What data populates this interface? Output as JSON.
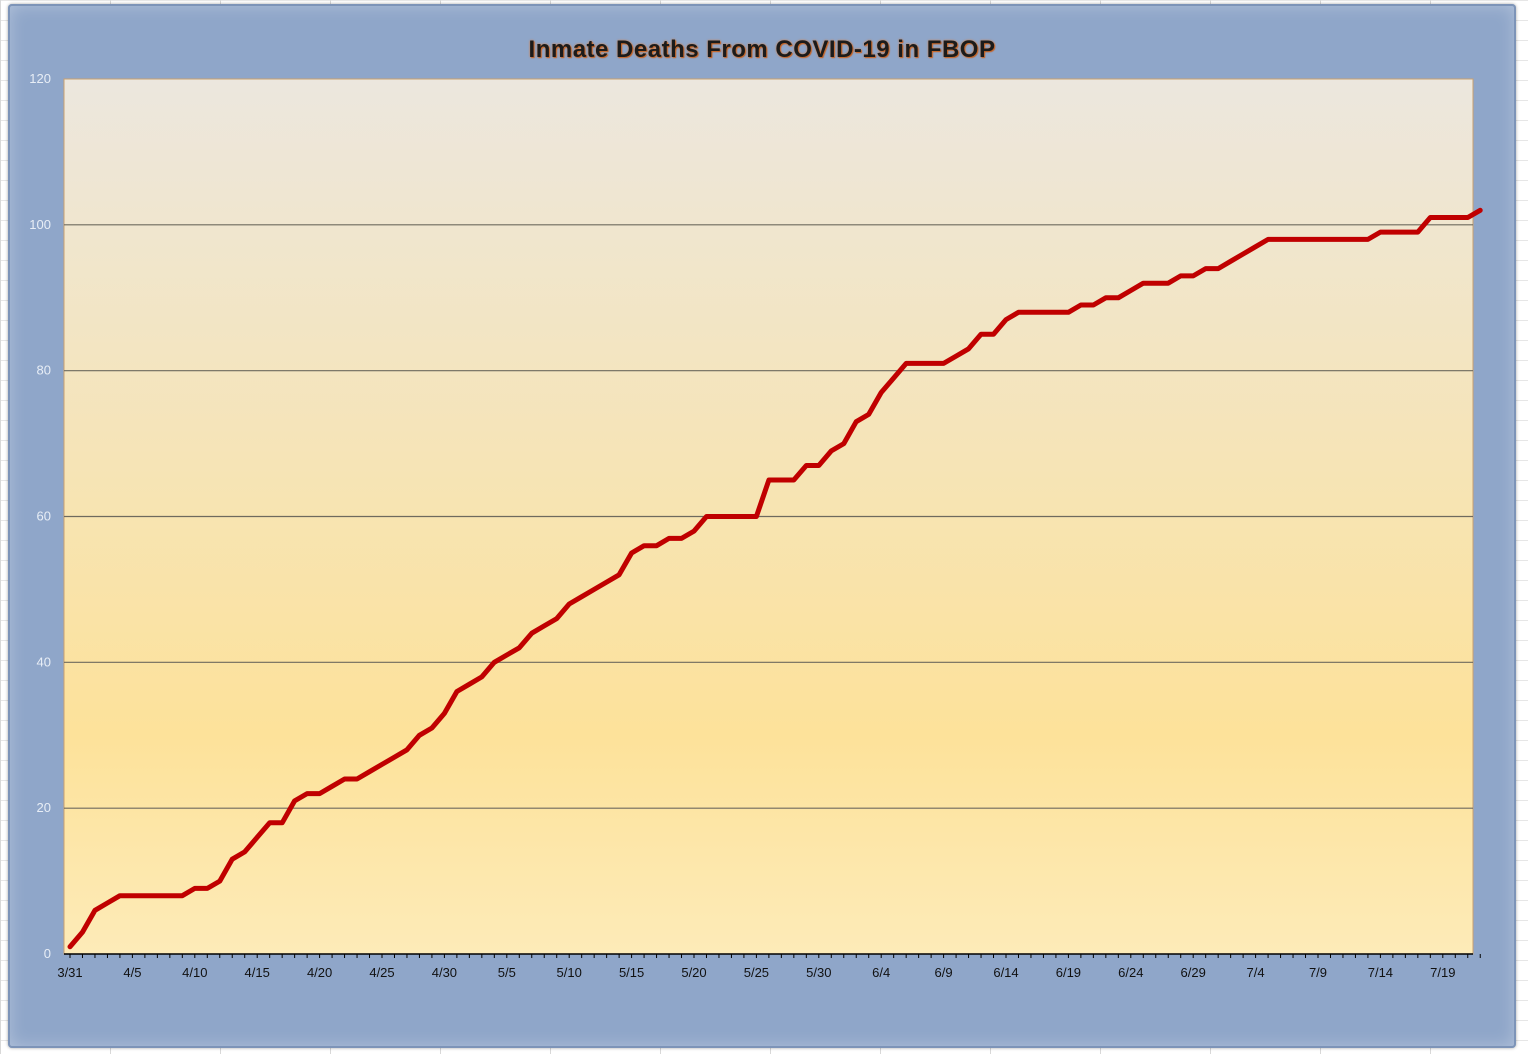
{
  "chart_data": {
    "type": "line",
    "title": "Inmate Deaths From COVID-19 in FBOP",
    "xlabel": "",
    "ylabel": "",
    "ylim": [
      0,
      120
    ],
    "yticks": [
      0,
      20,
      40,
      60,
      80,
      100,
      120
    ],
    "x_tick_labels": [
      "3/31",
      "4/5",
      "4/10",
      "4/15",
      "4/20",
      "4/25",
      "4/30",
      "5/5",
      "5/10",
      "5/15",
      "5/20",
      "5/25",
      "5/30",
      "6/4",
      "6/9",
      "6/14",
      "6/19",
      "6/24",
      "6/29",
      "7/4",
      "7/9",
      "7/14",
      "7/19"
    ],
    "grid": true,
    "legend": "none",
    "line_color": "#c00000",
    "plot_background": [
      "#ece7de",
      "#fde29a",
      "#fdebb8"
    ],
    "frame_color": "#8fa6c9",
    "x_start_date": "3/31",
    "series": [
      {
        "values": [
          1,
          3,
          6,
          7,
          8,
          8,
          8,
          8,
          8,
          8,
          9,
          9,
          10,
          13,
          14,
          16,
          18,
          18,
          21,
          22,
          22,
          23,
          24,
          24,
          25,
          26,
          27,
          28,
          30,
          31,
          33,
          36,
          37,
          38,
          40,
          41,
          42,
          44,
          45,
          46,
          48,
          49,
          50,
          51,
          52,
          55,
          56,
          56,
          57,
          57,
          58,
          60,
          60,
          60,
          60,
          60,
          65,
          65,
          65,
          67,
          67,
          69,
          70,
          73,
          74,
          77,
          79,
          81,
          81,
          81,
          81,
          82,
          83,
          85,
          85,
          87,
          88,
          88,
          88,
          88,
          88,
          89,
          89,
          90,
          90,
          91,
          92,
          92,
          92,
          93,
          93,
          94,
          94,
          95,
          96,
          97,
          98,
          98,
          98,
          98,
          98,
          98,
          98,
          98,
          98,
          99,
          99,
          99,
          99,
          101,
          101,
          101,
          101,
          102
        ]
      }
    ]
  }
}
